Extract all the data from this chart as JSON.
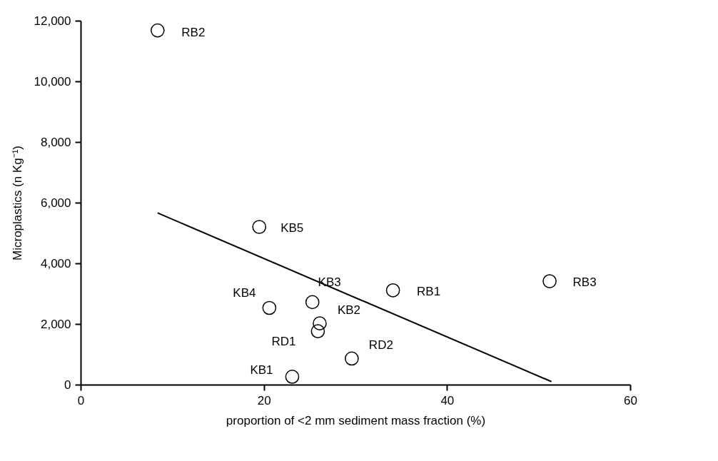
{
  "chart_data": {
    "type": "scatter",
    "xlabel": "proportion of <2 mm sediment mass fraction (%)",
    "ylabel": "Microplastics (n Kg⁻¹)",
    "xlim": [
      0,
      60
    ],
    "xticks": [
      0,
      20,
      40,
      60
    ],
    "ylim": [
      0,
      12000
    ],
    "yticks": [
      0,
      {
        "value": 2000,
        "label": "2,000"
      },
      {
        "value": 4000,
        "label": "4,000"
      },
      {
        "value": 6000,
        "label": "6,000"
      },
      {
        "value": 8000,
        "label": "8,000"
      },
      {
        "value": 10000,
        "label": "10,000"
      },
      {
        "value": 12000,
        "label": "12,000"
      }
    ],
    "grid": false,
    "series": [
      {
        "color": "#000000",
        "marker": "circle",
        "x": [
          8.4,
          19.5,
          51.2,
          34.1,
          20.6,
          25.3,
          26.1,
          25.9,
          29.6,
          23.1
        ],
        "values": [
          11680,
          5200,
          3410,
          3110,
          2530,
          2720,
          2020,
          1760,
          860,
          260
        ],
        "value_labels": [
          "RB2",
          "KB5",
          "RB3",
          "RB1",
          "KB4",
          "KB3",
          "KB2",
          "RD1",
          "RD2",
          "KB1"
        ]
      },
      {
        "type": "line",
        "color": "#000000",
        "x": [
          8.4,
          51.4
        ],
        "values": [
          5660,
          100
        ]
      }
    ]
  }
}
